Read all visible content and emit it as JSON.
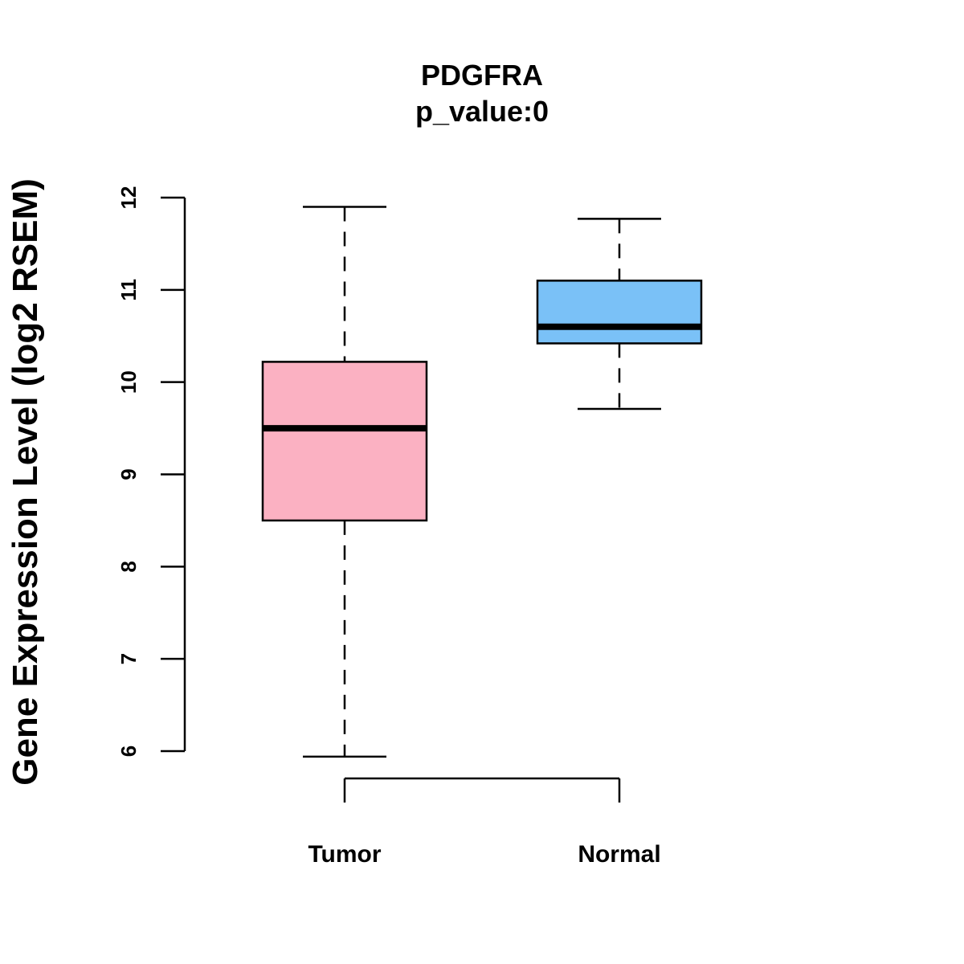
{
  "chart_data": {
    "type": "boxplot",
    "title": "PDGFRA",
    "subtitle": "p_value:0",
    "ylabel": "Gene Expression Level (log2 RSEM)",
    "xlabel": "",
    "ylim": [
      6,
      12
    ],
    "yticks": [
      "6",
      "7",
      "8",
      "9",
      "10",
      "11",
      "12"
    ],
    "categories": [
      "Tumor",
      "Normal"
    ],
    "boxes": [
      {
        "name": "Tumor",
        "min": 5.94,
        "q1": 8.5,
        "median": 9.5,
        "q3": 10.22,
        "max": 11.9,
        "color": "#FBB1C2"
      },
      {
        "name": "Normal",
        "min": 9.71,
        "q1": 10.42,
        "median": 10.6,
        "q3": 11.1,
        "max": 11.77,
        "color": "#7AC1F7"
      }
    ],
    "grid": false
  }
}
